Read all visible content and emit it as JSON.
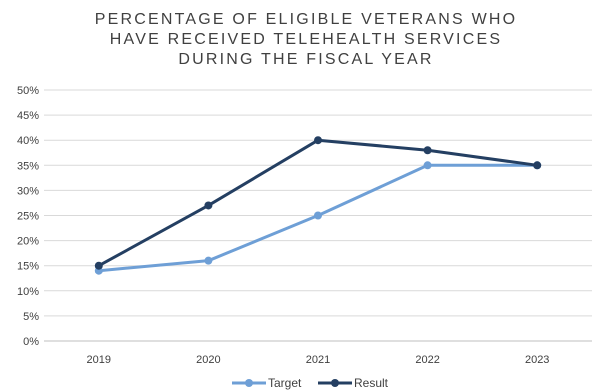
{
  "chart_data": {
    "type": "line",
    "title_lines": [
      "PERCENTAGE OF ELIGIBLE VETERANS WHO",
      "HAVE RECEIVED TELEHEALTH SERVICES",
      "DURING THE FISCAL YEAR"
    ],
    "categories": [
      "2019",
      "2020",
      "2021",
      "2022",
      "2023"
    ],
    "y_ticks": [
      "0%",
      "5%",
      "10%",
      "15%",
      "20%",
      "25%",
      "30%",
      "35%",
      "40%",
      "45%",
      "50%"
    ],
    "ylim": [
      0,
      50
    ],
    "grid": true,
    "legend_position": "bottom",
    "series": [
      {
        "name": "Target",
        "values": [
          14,
          16,
          25,
          35,
          35
        ],
        "color": "#6E9FD6"
      },
      {
        "name": "Result",
        "values": [
          15,
          27,
          40,
          38,
          35
        ],
        "color": "#243F62"
      }
    ]
  }
}
